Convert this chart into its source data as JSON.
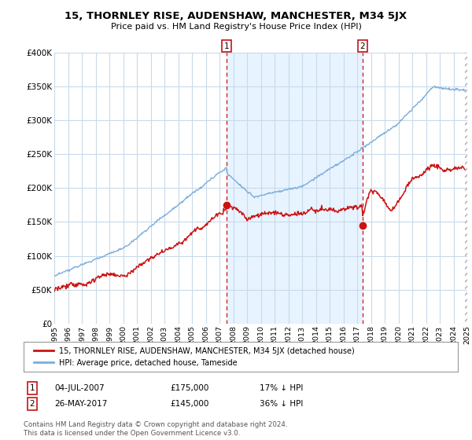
{
  "title": "15, THORNLEY RISE, AUDENSHAW, MANCHESTER, M34 5JX",
  "subtitle": "Price paid vs. HM Land Registry's House Price Index (HPI)",
  "hpi_color": "#7aaddc",
  "price_color": "#cc1111",
  "background_color": "#ffffff",
  "grid_color": "#c8daea",
  "fill_color": "#ddeeff",
  "ylim": [
    0,
    400000
  ],
  "yticks": [
    0,
    50000,
    100000,
    150000,
    200000,
    250000,
    300000,
    350000,
    400000
  ],
  "ytick_labels": [
    "£0",
    "£50K",
    "£100K",
    "£150K",
    "£200K",
    "£250K",
    "£300K",
    "£350K",
    "£400K"
  ],
  "legend_entry1": "15, THORNLEY RISE, AUDENSHAW, MANCHESTER, M34 5JX (detached house)",
  "legend_entry2": "HPI: Average price, detached house, Tameside",
  "annotation1_label": "1",
  "annotation1_date": "04-JUL-2007",
  "annotation1_price": "£175,000",
  "annotation1_pct": "17% ↓ HPI",
  "annotation2_label": "2",
  "annotation2_date": "26-MAY-2017",
  "annotation2_price": "£145,000",
  "annotation2_pct": "36% ↓ HPI",
  "footer": "Contains HM Land Registry data © Crown copyright and database right 2024.\nThis data is licensed under the Open Government Licence v3.0.",
  "sale1_x": 2007.5,
  "sale1_y": 175000,
  "sale2_x": 2017.38,
  "sale2_y": 145000,
  "xmin": 1995,
  "xmax": 2025
}
